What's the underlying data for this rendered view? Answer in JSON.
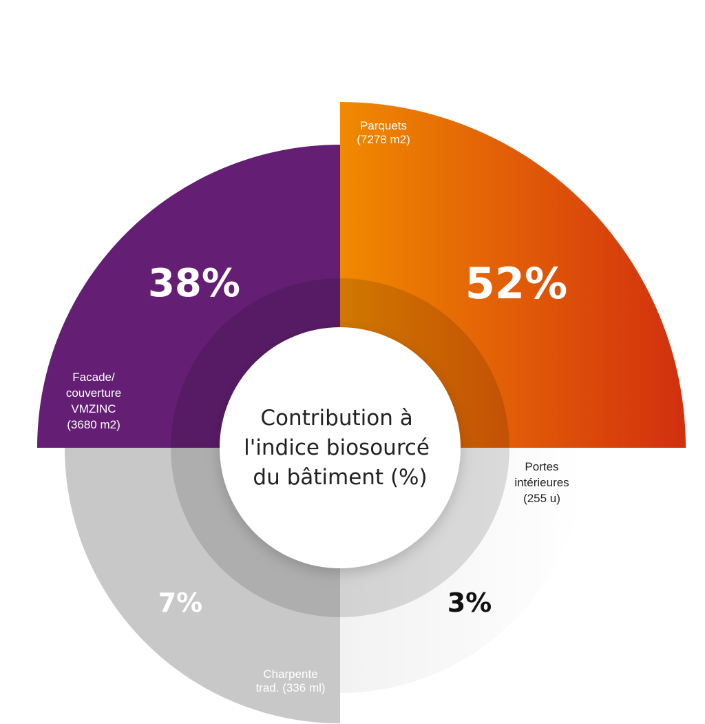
{
  "chart_data": {
    "type": "pie",
    "title": "Contribution à l'indice biosourcé du bâtiment (%)",
    "center_lines": [
      "Contribution à",
      "l'indice biosourcé",
      "du bâtiment (%)"
    ],
    "slices": [
      {
        "key": "parquets",
        "label_lines": [
          "Parquets",
          "(7278 m2)"
        ],
        "value": 52,
        "value_label": "52%",
        "color_start": "#f08a00",
        "color_end": "#d22f0e",
        "label_color": "#ffffff",
        "value_color": "#ffffff"
      },
      {
        "key": "portes",
        "label_lines": [
          "Portes",
          "intérieures",
          "(255 u)"
        ],
        "value": 3,
        "value_label": "3%",
        "color_start": "#f0f0f0",
        "color_end": "#ffffff",
        "label_color": "#222222",
        "value_color": "#111111"
      },
      {
        "key": "charpente",
        "label_lines": [
          "Charpente",
          "trad. (336 ml)"
        ],
        "value": 7,
        "value_label": "7%",
        "color_start": "#c8c8c8",
        "color_end": "#c8c8c8",
        "label_color": "#ffffff",
        "value_color": "#ffffff"
      },
      {
        "key": "facade",
        "label_lines": [
          "Facade/",
          "couverture",
          "VMZINC",
          "(3680 m2)"
        ],
        "value": 38,
        "value_label": "38%",
        "color_start": "#641f74",
        "color_end": "#641f74",
        "label_color": "#ffffff",
        "value_color": "#ffffff"
      }
    ]
  }
}
